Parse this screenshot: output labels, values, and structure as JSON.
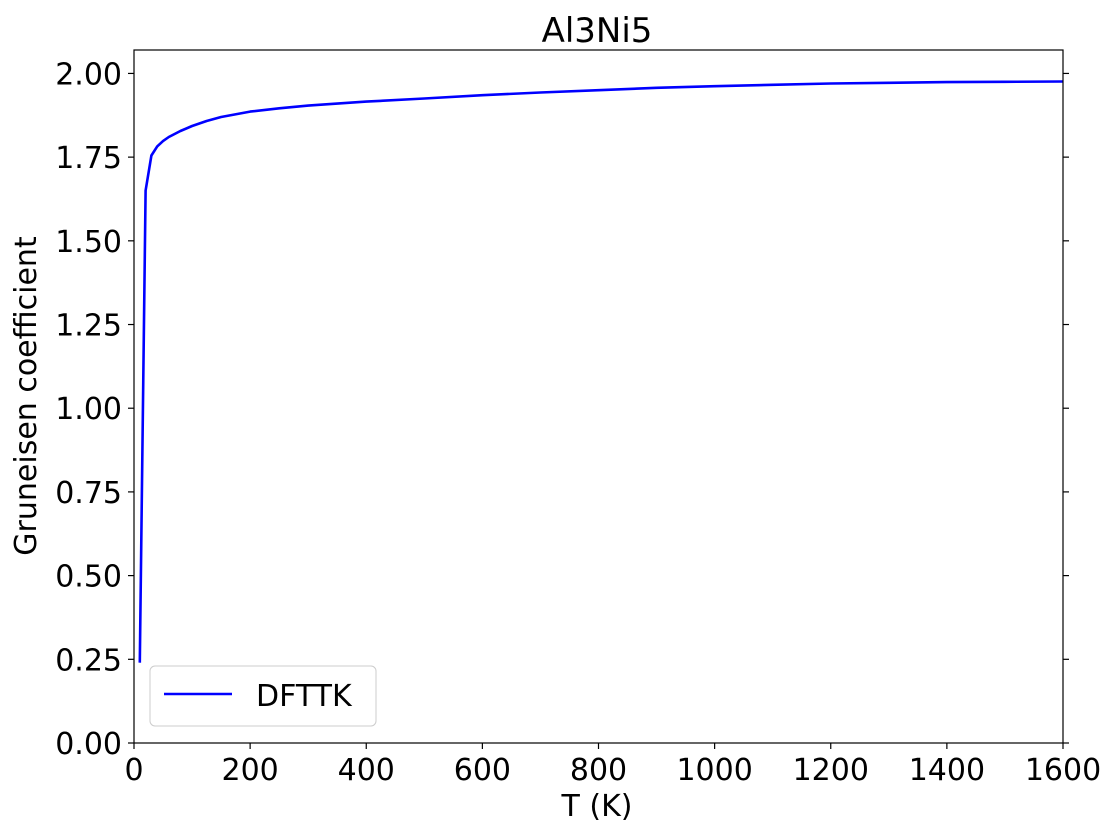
{
  "chart_data": {
    "type": "line",
    "title": "Al3Ni5",
    "xlabel": "T (K)",
    "ylabel": "Gruneisen coefficient",
    "xlim": [
      0,
      1600
    ],
    "ylim": [
      0,
      2.07
    ],
    "xticks": [
      0,
      200,
      400,
      600,
      800,
      1000,
      1200,
      1400,
      1600
    ],
    "xtick_labels": [
      "0",
      "200",
      "400",
      "600",
      "800",
      "1000",
      "1200",
      "1400",
      "1600"
    ],
    "yticks": [
      0,
      0.25,
      0.5,
      0.75,
      1.0,
      1.25,
      1.5,
      1.75,
      2.0
    ],
    "ytick_labels": [
      "0.00",
      "0.25",
      "0.50",
      "0.75",
      "1.00",
      "1.25",
      "1.50",
      "1.75",
      "2.00"
    ],
    "grid": false,
    "legend_position": "lower-left",
    "series": [
      {
        "name": "DFTTK",
        "color": "#0000ff",
        "x": [
          10,
          20,
          30,
          40,
          50,
          60,
          80,
          100,
          125,
          150,
          200,
          250,
          300,
          350,
          400,
          500,
          600,
          700,
          800,
          900,
          1000,
          1100,
          1200,
          1300,
          1400,
          1500,
          1600
        ],
        "y": [
          0.24,
          1.65,
          1.755,
          1.782,
          1.798,
          1.81,
          1.828,
          1.843,
          1.858,
          1.87,
          1.886,
          1.896,
          1.904,
          1.91,
          1.916,
          1.925,
          1.935,
          1.943,
          1.95,
          1.957,
          1.962,
          1.966,
          1.97,
          1.972,
          1.974,
          1.975,
          1.976
        ]
      }
    ]
  }
}
